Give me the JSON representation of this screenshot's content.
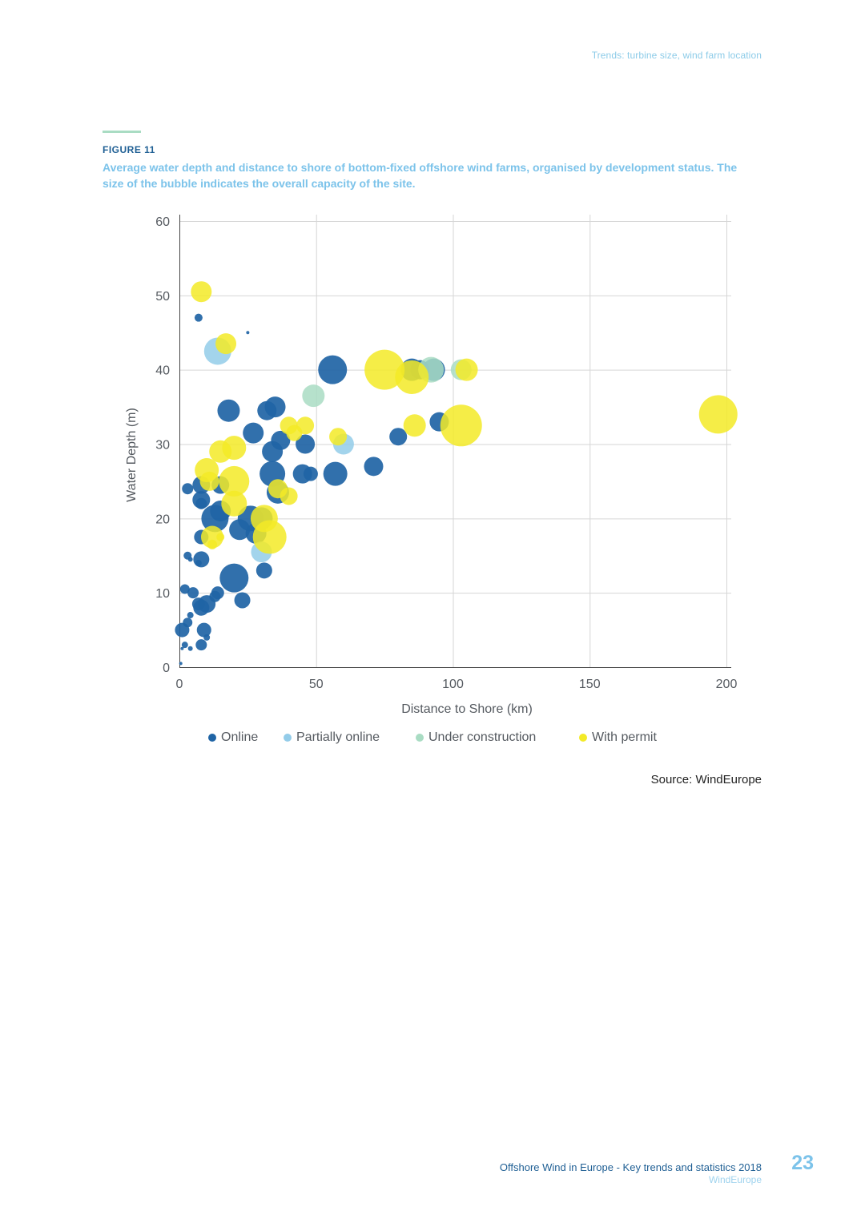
{
  "header": {
    "running_title": "Trends: turbine size, wind farm location"
  },
  "figure": {
    "label": "FIGURE 11",
    "caption": "Average water depth and distance to shore of bottom-fixed offshore wind farms, organised by development status. The size of the bubble indicates the overall capacity of the site."
  },
  "colors": {
    "online": "#1f64a5",
    "partial": "#93cce9",
    "construction": "#a9dcc3",
    "permit": "#f3ea27"
  },
  "chart_data": {
    "type": "scatter",
    "title": "",
    "xlabel": "Distance to Shore (km)",
    "ylabel": "Water Depth (m)",
    "xlim": [
      0,
      200
    ],
    "ylim": [
      0,
      60
    ],
    "x_ticks": [
      0,
      50,
      100,
      150,
      200
    ],
    "y_ticks": [
      0,
      10,
      20,
      30,
      40,
      50,
      60
    ],
    "grid": true,
    "legend_position": "bottom",
    "series": [
      {
        "name": "Online",
        "key": "online",
        "points": [
          {
            "x": 7,
            "y": 47,
            "r": 5
          },
          {
            "x": 25,
            "y": 45,
            "r": 2
          },
          {
            "x": 56,
            "y": 40,
            "r": 18
          },
          {
            "x": 85,
            "y": 40,
            "r": 14
          },
          {
            "x": 88,
            "y": 40,
            "r": 12
          },
          {
            "x": 93,
            "y": 40,
            "r": 14
          },
          {
            "x": 18,
            "y": 34.5,
            "r": 14
          },
          {
            "x": 32,
            "y": 34.5,
            "r": 12
          },
          {
            "x": 35,
            "y": 35,
            "r": 13
          },
          {
            "x": 27,
            "y": 31.5,
            "r": 13
          },
          {
            "x": 37,
            "y": 30.5,
            "r": 12
          },
          {
            "x": 34,
            "y": 29,
            "r": 13
          },
          {
            "x": 46,
            "y": 30,
            "r": 12
          },
          {
            "x": 80,
            "y": 31,
            "r": 11
          },
          {
            "x": 95,
            "y": 33,
            "r": 12
          },
          {
            "x": 71,
            "y": 27,
            "r": 12
          },
          {
            "x": 34,
            "y": 26,
            "r": 16
          },
          {
            "x": 45,
            "y": 26,
            "r": 12
          },
          {
            "x": 48,
            "y": 26,
            "r": 9
          },
          {
            "x": 57,
            "y": 26,
            "r": 15
          },
          {
            "x": 3,
            "y": 24,
            "r": 7
          },
          {
            "x": 8,
            "y": 24.5,
            "r": 11
          },
          {
            "x": 15,
            "y": 24.5,
            "r": 11
          },
          {
            "x": 36,
            "y": 23.5,
            "r": 14
          },
          {
            "x": 8,
            "y": 22.5,
            "r": 11
          },
          {
            "x": 8,
            "y": 22,
            "r": 7
          },
          {
            "x": 15,
            "y": 21,
            "r": 13
          },
          {
            "x": 13,
            "y": 20,
            "r": 17
          },
          {
            "x": 26,
            "y": 20,
            "r": 16
          },
          {
            "x": 30,
            "y": 20,
            "r": 14
          },
          {
            "x": 22,
            "y": 18.5,
            "r": 13
          },
          {
            "x": 28,
            "y": 18,
            "r": 13
          },
          {
            "x": 8,
            "y": 17.5,
            "r": 9
          },
          {
            "x": 3,
            "y": 15,
            "r": 5
          },
          {
            "x": 4,
            "y": 14.5,
            "r": 3
          },
          {
            "x": 7,
            "y": 14,
            "r": 4
          },
          {
            "x": 8,
            "y": 14.5,
            "r": 10
          },
          {
            "x": 31,
            "y": 13,
            "r": 10
          },
          {
            "x": 20,
            "y": 12,
            "r": 18
          },
          {
            "x": 2,
            "y": 10.5,
            "r": 6
          },
          {
            "x": 5,
            "y": 10,
            "r": 7
          },
          {
            "x": 14,
            "y": 10,
            "r": 8
          },
          {
            "x": 13,
            "y": 9.5,
            "r": 7
          },
          {
            "x": 23,
            "y": 9,
            "r": 10
          },
          {
            "x": 7,
            "y": 8.5,
            "r": 8
          },
          {
            "x": 10,
            "y": 8.5,
            "r": 11
          },
          {
            "x": 8,
            "y": 8,
            "r": 10
          },
          {
            "x": 4,
            "y": 7,
            "r": 4
          },
          {
            "x": 3,
            "y": 6,
            "r": 6
          },
          {
            "x": 1,
            "y": 5,
            "r": 9
          },
          {
            "x": 9,
            "y": 5,
            "r": 9
          },
          {
            "x": 10,
            "y": 4,
            "r": 4
          },
          {
            "x": 2,
            "y": 3,
            "r": 4
          },
          {
            "x": 4,
            "y": 2.5,
            "r": 3
          },
          {
            "x": 1,
            "y": 2.5,
            "r": 2
          },
          {
            "x": 8,
            "y": 3,
            "r": 7
          },
          {
            "x": 0.5,
            "y": 0.5,
            "r": 2
          }
        ]
      },
      {
        "name": "Partially online",
        "key": "partial",
        "points": [
          {
            "x": 14,
            "y": 42.5,
            "r": 17
          },
          {
            "x": 60,
            "y": 30,
            "r": 13
          },
          {
            "x": 30,
            "y": 15.5,
            "r": 13
          }
        ]
      },
      {
        "name": "Under construction",
        "key": "construction",
        "points": [
          {
            "x": 49,
            "y": 36.5,
            "r": 14
          },
          {
            "x": 92,
            "y": 40,
            "r": 16
          },
          {
            "x": 103,
            "y": 40,
            "r": 13
          }
        ]
      },
      {
        "name": "With permit",
        "key": "permit",
        "points": [
          {
            "x": 8,
            "y": 50.5,
            "r": 13
          },
          {
            "x": 17,
            "y": 43.5,
            "r": 13
          },
          {
            "x": 75,
            "y": 40,
            "r": 25
          },
          {
            "x": 85,
            "y": 39,
            "r": 21
          },
          {
            "x": 105,
            "y": 40,
            "r": 14
          },
          {
            "x": 86,
            "y": 32.5,
            "r": 14
          },
          {
            "x": 103,
            "y": 32.5,
            "r": 26
          },
          {
            "x": 197,
            "y": 34,
            "r": 24
          },
          {
            "x": 40,
            "y": 32.5,
            "r": 11
          },
          {
            "x": 46,
            "y": 32.5,
            "r": 11
          },
          {
            "x": 42,
            "y": 31.5,
            "r": 10
          },
          {
            "x": 58,
            "y": 31,
            "r": 11
          },
          {
            "x": 20,
            "y": 29.5,
            "r": 15
          },
          {
            "x": 15,
            "y": 29,
            "r": 14
          },
          {
            "x": 10,
            "y": 26.5,
            "r": 15
          },
          {
            "x": 11,
            "y": 25,
            "r": 12
          },
          {
            "x": 20,
            "y": 25,
            "r": 19
          },
          {
            "x": 36,
            "y": 24,
            "r": 12
          },
          {
            "x": 40,
            "y": 23,
            "r": 11
          },
          {
            "x": 20,
            "y": 22,
            "r": 16
          },
          {
            "x": 31,
            "y": 20,
            "r": 17
          },
          {
            "x": 33,
            "y": 17.5,
            "r": 21
          },
          {
            "x": 12,
            "y": 17.5,
            "r": 14
          },
          {
            "x": 15,
            "y": 17.5,
            "r": 5
          },
          {
            "x": 12,
            "y": 16.5,
            "r": 6
          }
        ]
      }
    ]
  },
  "legend": {
    "online": "Online",
    "partial": "Partially online",
    "construction": "Under construction",
    "permit": "With permit"
  },
  "source": "Source: WindEurope",
  "footer": {
    "title": "Offshore Wind in Europe - Key trends and statistics 2018",
    "subtitle": "WindEurope",
    "page_number": "23"
  }
}
